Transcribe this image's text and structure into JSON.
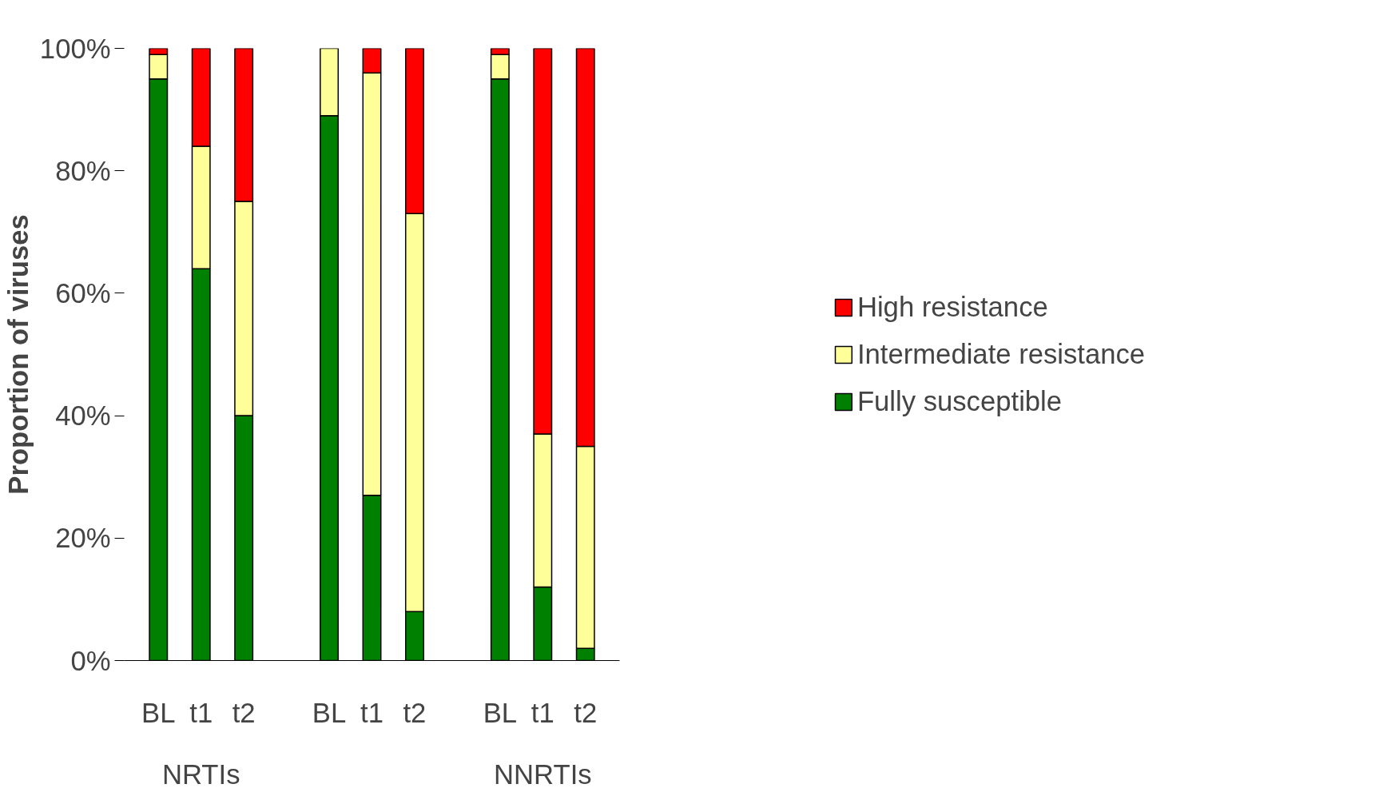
{
  "chart_data": {
    "type": "bar",
    "stacked": true,
    "ylabel": "Proportion of viruses",
    "categories": [
      "BL",
      "t1",
      "t2",
      "BL",
      "t1",
      "t2",
      "BL",
      "t1",
      "t2"
    ],
    "series": [
      {
        "name": "Fully susceptible",
        "color": "#008000",
        "values": [
          95,
          64,
          40,
          89,
          27,
          8,
          95,
          12,
          2
        ]
      },
      {
        "name": "Intermediate resistance",
        "color": "#ffff99",
        "values": [
          4,
          20,
          35,
          11,
          69,
          65,
          4,
          25,
          33
        ]
      },
      {
        "name": "High resistance",
        "color": "#ff0000",
        "values": [
          1,
          16,
          25,
          0,
          4,
          27,
          1,
          63,
          65
        ]
      }
    ],
    "annotations": [
      "NRTIs",
      "NNRTIs"
    ],
    "ylim": [
      0,
      100
    ],
    "yticks": [
      {
        "value": 0,
        "label": "0%"
      },
      {
        "value": 20,
        "label": "20%"
      },
      {
        "value": 40,
        "label": "40%"
      },
      {
        "value": 60,
        "label": "60%"
      },
      {
        "value": 80,
        "label": "80%"
      },
      {
        "value": 100,
        "label": "100%"
      }
    ],
    "grid": false,
    "legend": "right"
  }
}
